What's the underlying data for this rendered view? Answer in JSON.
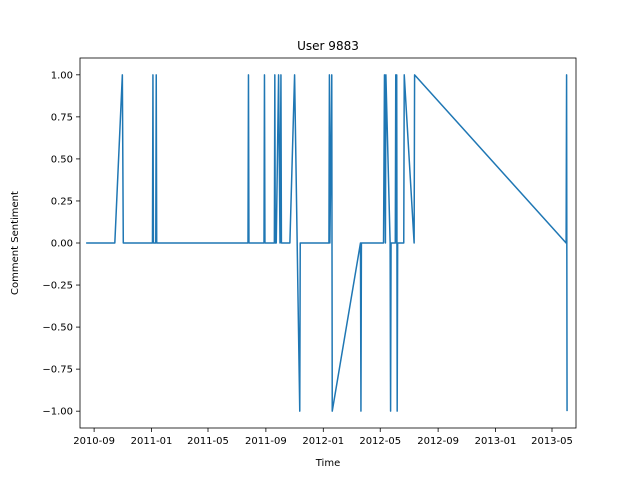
{
  "chart_data": {
    "type": "line",
    "title": "User 9883",
    "xlabel": "Time",
    "ylabel": "Comment Sentiment",
    "x_ticks": [
      "2010-09-01",
      "2011-01-01",
      "2011-05-01",
      "2011-09-01",
      "2012-01-01",
      "2012-05-01",
      "2012-09-01",
      "2013-01-01",
      "2013-05-01"
    ],
    "x_tick_labels": [
      "2010-09",
      "2011-01",
      "2011-05",
      "2011-09",
      "2012-01",
      "2012-05",
      "2012-09",
      "2013-01",
      "2013-05"
    ],
    "y_ticks": [
      -1.0,
      -0.75,
      -0.5,
      -0.25,
      0.0,
      0.25,
      0.5,
      0.75,
      1.0
    ],
    "y_tick_labels": [
      "−1.00",
      "−0.75",
      "−0.50",
      "−0.25",
      "0.00",
      "0.25",
      "0.50",
      "0.75",
      "1.00"
    ],
    "xlim": [
      "2010-08-02",
      "2013-06-21"
    ],
    "ylim": [
      -1.1,
      1.1
    ],
    "grid": false,
    "color": "#1f77b4",
    "series": [
      {
        "x": [
          "2010-08-15",
          "2010-10-15",
          "2010-10-31",
          "2010-11-02",
          "2011-01-03",
          "2011-01-04",
          "2011-01-05",
          "2011-01-10",
          "2011-01-11",
          "2011-01-12",
          "2011-07-25",
          "2011-07-26",
          "2011-07-27",
          "2011-08-28",
          "2011-08-29",
          "2011-08-30",
          "2011-09-01",
          "2011-09-19",
          "2011-09-20",
          "2011-09-21",
          "2011-09-23",
          "2011-09-28",
          "2011-10-01",
          "2011-10-03",
          "2011-10-04",
          "2011-10-22",
          "2011-11-01",
          "2011-11-12",
          "2011-11-13",
          "2012-01-13",
          "2012-01-14",
          "2012-01-15",
          "2012-01-19",
          "2012-01-20",
          "2012-03-20",
          "2012-03-21",
          "2012-03-22",
          "2012-05-08",
          "2012-05-10",
          "2012-05-12",
          "2012-05-13",
          "2012-05-22",
          "2012-05-23",
          "2012-05-24",
          "2012-06-02",
          "2012-06-03",
          "2012-06-04",
          "2012-06-05",
          "2012-06-06",
          "2012-06-07",
          "2012-06-20",
          "2012-06-21",
          "2012-07-12",
          "2012-07-13",
          "2013-05-31",
          "2013-06-01",
          "2013-06-02"
        ],
        "y": [
          0,
          0,
          1,
          0,
          0,
          1,
          0,
          0,
          1,
          0,
          0,
          1,
          0,
          0,
          1,
          0,
          0,
          0,
          1,
          0,
          0,
          1,
          0,
          1,
          0,
          0,
          1,
          -1,
          0,
          0,
          1,
          0,
          1,
          -1,
          0,
          -1,
          0,
          0,
          1,
          0,
          1,
          0,
          -1,
          0,
          0,
          1,
          0,
          1,
          -1,
          0,
          0,
          1,
          0,
          1,
          0,
          1,
          -1
        ]
      }
    ]
  }
}
